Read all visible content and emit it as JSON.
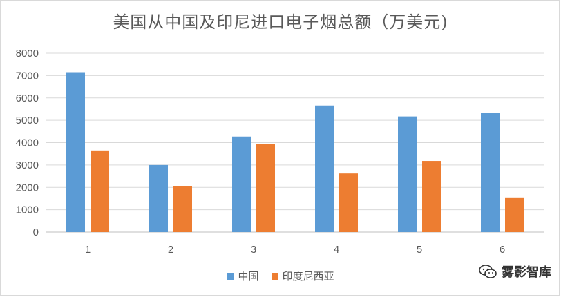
{
  "chart_data": {
    "type": "bar",
    "title": "美国从中国及印尼进口电子烟总额（万美元)",
    "categories": [
      "1",
      "2",
      "3",
      "4",
      "5",
      "6"
    ],
    "series": [
      {
        "name": "中国",
        "color": "#5b9bd5",
        "values": [
          7150,
          3000,
          4270,
          5660,
          5170,
          5330
        ]
      },
      {
        "name": "印度尼西亚",
        "color": "#ed7d31",
        "values": [
          3650,
          2060,
          3940,
          2620,
          3180,
          1550
        ]
      }
    ],
    "ylim": [
      0,
      8000
    ],
    "yticks": [
      0,
      1000,
      2000,
      3000,
      4000,
      5000,
      6000,
      7000,
      8000
    ],
    "grid": true,
    "legend_position": "bottom"
  },
  "watermark": {
    "text": "雾影智库",
    "icon": "wechat-icon"
  }
}
